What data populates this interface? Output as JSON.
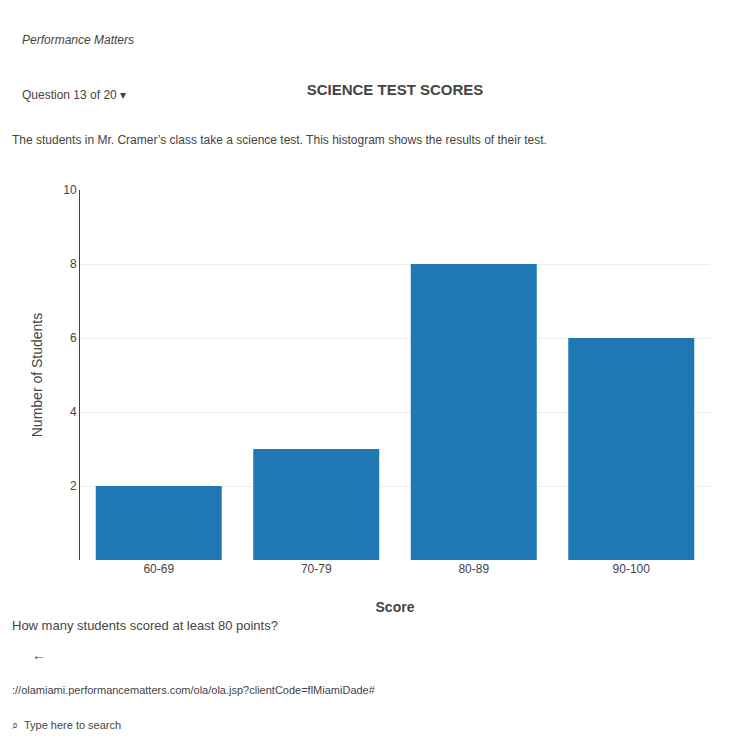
{
  "chart_data": {
    "type": "bar",
    "title": "SCIENCE TEST SCORES",
    "categories": [
      "60-69",
      "70-79",
      "80-89",
      "90-100"
    ],
    "values": [
      2,
      3,
      8,
      6
    ],
    "xlabel": "Score",
    "ylabel": "Number of Students",
    "ylim": [
      0,
      10
    ],
    "yticks": [
      2,
      4,
      6,
      8,
      10
    ],
    "grid": true,
    "annotations": [
      "Performance Matters",
      "Question 13 of 20 ▾",
      "The students in Mr. Cramer’s class take a science test. This histogram shows the results of their test.",
      "How many students scored at least 80 points?",
      "←",
      "://olamiami.performancematters.com/ola/ola.jsp?clientCode=flMiamiDade#",
      "⌕  Type here to search"
    ]
  }
}
